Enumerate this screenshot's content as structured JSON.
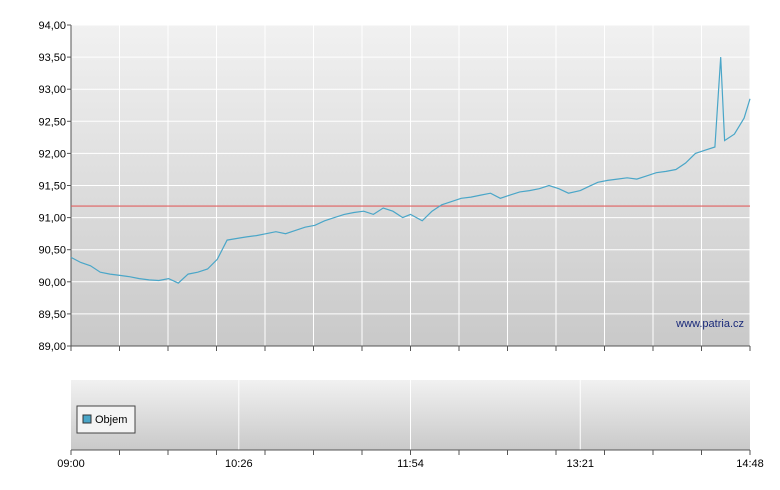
{
  "chart_data": [
    {
      "type": "line",
      "grid": true,
      "ylim": [
        89.0,
        94.0
      ],
      "y_ticks": [
        "94,00",
        "93,50",
        "93,00",
        "92,50",
        "92,00",
        "91,50",
        "91,00",
        "90,50",
        "90,00",
        "89,50",
        "89,00"
      ],
      "x_ticks": [
        "09:00",
        "10:26",
        "11:54",
        "13:21",
        "14:48"
      ],
      "reference_line": 91.18,
      "watermark": "www.patria.cz",
      "colors": {
        "line": "#4aa6c8",
        "reference": "#e06060"
      },
      "series": [
        {
          "x": [
            "09:00",
            "09:05",
            "09:10",
            "09:15",
            "09:20",
            "09:25",
            "09:30",
            "09:35",
            "09:40",
            "09:45",
            "09:50",
            "09:55",
            "10:00",
            "10:05",
            "10:10",
            "10:15",
            "10:20",
            "10:26",
            "10:30",
            "10:35",
            "10:40",
            "10:45",
            "10:50",
            "10:55",
            "11:00",
            "11:05",
            "11:10",
            "11:15",
            "11:20",
            "11:25",
            "11:30",
            "11:35",
            "11:40",
            "11:45",
            "11:50",
            "11:54",
            "12:00",
            "12:05",
            "12:10",
            "12:15",
            "12:20",
            "12:25",
            "12:30",
            "12:35",
            "12:40",
            "12:45",
            "12:50",
            "12:55",
            "13:00",
            "13:05",
            "13:10",
            "13:15",
            "13:21",
            "13:25",
            "13:30",
            "13:35",
            "13:40",
            "13:45",
            "13:50",
            "13:55",
            "14:00",
            "14:05",
            "14:10",
            "14:15",
            "14:20",
            "14:25",
            "14:30",
            "14:33",
            "14:35",
            "14:40",
            "14:45",
            "14:48"
          ],
          "values": [
            90.38,
            90.3,
            90.25,
            90.15,
            90.12,
            90.1,
            90.08,
            90.05,
            90.03,
            90.02,
            90.05,
            89.98,
            90.12,
            90.15,
            90.2,
            90.35,
            90.65,
            90.68,
            90.7,
            90.72,
            90.75,
            90.78,
            90.75,
            90.8,
            90.85,
            90.88,
            90.95,
            91.0,
            91.05,
            91.08,
            91.1,
            91.05,
            91.15,
            91.1,
            91.0,
            91.05,
            90.95,
            91.1,
            91.2,
            91.25,
            91.3,
            91.32,
            91.35,
            91.38,
            91.3,
            91.35,
            91.4,
            91.42,
            91.45,
            91.5,
            91.45,
            91.38,
            91.42,
            91.48,
            91.55,
            91.58,
            91.6,
            91.62,
            91.6,
            91.65,
            91.7,
            91.72,
            91.75,
            91.85,
            92.0,
            92.05,
            92.1,
            93.5,
            92.2,
            92.3,
            92.55,
            92.85
          ]
        }
      ]
    },
    {
      "type": "bar",
      "legend": {
        "label": "Objem",
        "placement": "top-left"
      },
      "x_ticks": [
        "09:00",
        "10:26",
        "11:54",
        "13:21",
        "14:48"
      ],
      "series": [
        {
          "name": "Objem",
          "values": []
        }
      ]
    }
  ]
}
